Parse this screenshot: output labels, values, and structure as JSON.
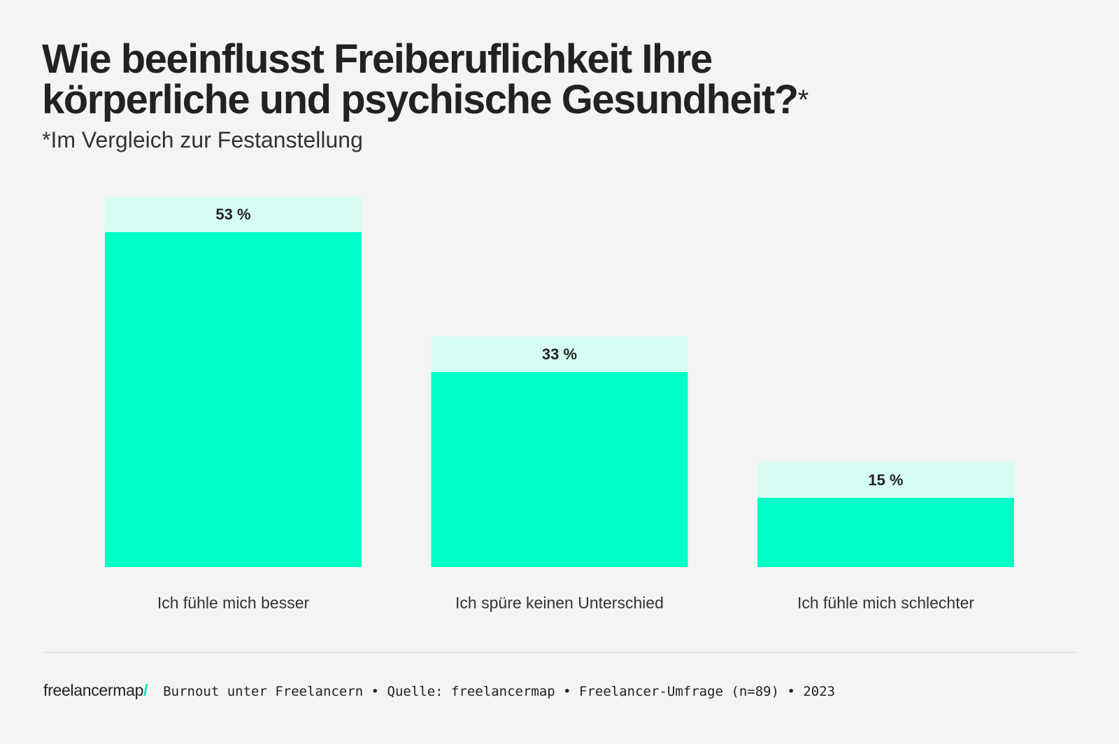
{
  "chart_data": {
    "type": "bar",
    "title": "Wie beeinflusst Freiberuflichkeit Ihre körperliche und psychische Gesundheit?*",
    "title_lines": [
      "Wie beeinflusst Freiberuflichkeit Ihre",
      "körperliche und psychische Gesundheit?"
    ],
    "title_mark": "*",
    "subtitle": "*Im Vergleich zur Festanstellung",
    "categories": [
      "Ich fühle mich besser",
      "Ich spüre keinen Unterschied",
      "Ich fühle mich schlechter"
    ],
    "values": [
      53,
      33,
      15
    ],
    "data_labels": [
      "53 %",
      "33 %",
      "15 %"
    ],
    "unit": "%",
    "ylim": [
      0,
      53
    ],
    "grid": false,
    "axes_visible": false,
    "colors": {
      "bar": "#00ffc8",
      "label_box": "#d6fdf3",
      "background": "#f4f4f4",
      "text": "#222222"
    }
  },
  "footer": {
    "logo": "freelancermap",
    "logo_slash": "/",
    "logo_accent": "#00e8b8",
    "source": "Burnout unter Freelancern • Quelle: freelancermap • Freelancer-Umfrage (n=89) • 2023"
  }
}
